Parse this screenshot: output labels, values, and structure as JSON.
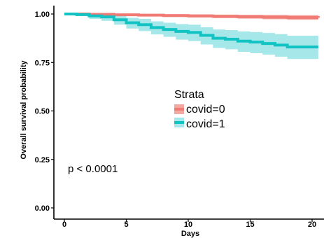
{
  "chart_data": {
    "type": "line",
    "subtype": "kaplan-meier survival curve",
    "xlabel": "Days",
    "ylabel": "Overall survival probability",
    "xlim": [
      0,
      20.5
    ],
    "ylim": [
      0,
      1.0
    ],
    "x_ticks": [
      0,
      5,
      10,
      15,
      20
    ],
    "x_tick_labels": [
      "0",
      "5",
      "10",
      "15",
      "20"
    ],
    "y_ticks": [
      0,
      0.25,
      0.5,
      0.75,
      1.0
    ],
    "y_tick_labels": [
      "0.00",
      "0.25",
      "0.50",
      "0.75",
      "1.00"
    ],
    "grid": false,
    "legend": {
      "title": "Strata",
      "position": "center",
      "entries": [
        "covid=0",
        "covid=1"
      ]
    },
    "annotation": "p < 0.0001",
    "series": [
      {
        "name": "covid=0",
        "color": "#F07B74",
        "band_color": "#F4A8A2",
        "steps": [
          {
            "x": 0,
            "y": 1.0
          },
          {
            "x": 2,
            "y": 0.998
          },
          {
            "x": 4,
            "y": 0.996
          },
          {
            "x": 6,
            "y": 0.994
          },
          {
            "x": 8,
            "y": 0.992
          },
          {
            "x": 10,
            "y": 0.99
          },
          {
            "x": 12,
            "y": 0.988
          },
          {
            "x": 14,
            "y": 0.986
          },
          {
            "x": 16,
            "y": 0.984
          },
          {
            "x": 18,
            "y": 0.982
          },
          {
            "x": 20.5,
            "y": 0.981
          }
        ],
        "lower": [
          0.997,
          0.994,
          0.991,
          0.988,
          0.985,
          0.982,
          0.979,
          0.976,
          0.973,
          0.97,
          0.969
        ],
        "upper": [
          1.0,
          1.0,
          1.0,
          1.0,
          0.999,
          0.998,
          0.997,
          0.996,
          0.995,
          0.994,
          0.993
        ]
      },
      {
        "name": "covid=1",
        "color": "#12C3C3",
        "band_color": "#A6E7EA",
        "steps": [
          {
            "x": 0,
            "y": 1.0
          },
          {
            "x": 1,
            "y": 0.997
          },
          {
            "x": 2,
            "y": 0.99
          },
          {
            "x": 3,
            "y": 0.985
          },
          {
            "x": 4,
            "y": 0.97
          },
          {
            "x": 5,
            "y": 0.955
          },
          {
            "x": 6,
            "y": 0.945
          },
          {
            "x": 7,
            "y": 0.93
          },
          {
            "x": 8,
            "y": 0.92
          },
          {
            "x": 9,
            "y": 0.91
          },
          {
            "x": 10,
            "y": 0.905
          },
          {
            "x": 11,
            "y": 0.89
          },
          {
            "x": 12,
            "y": 0.875
          },
          {
            "x": 13,
            "y": 0.87
          },
          {
            "x": 14,
            "y": 0.86
          },
          {
            "x": 15,
            "y": 0.855
          },
          {
            "x": 16,
            "y": 0.848
          },
          {
            "x": 17,
            "y": 0.84
          },
          {
            "x": 18,
            "y": 0.83
          },
          {
            "x": 20.5,
            "y": 0.83
          }
        ],
        "lower": [
          1.0,
          0.99,
          0.975,
          0.965,
          0.945,
          0.925,
          0.912,
          0.895,
          0.882,
          0.868,
          0.86,
          0.843,
          0.825,
          0.818,
          0.805,
          0.798,
          0.79,
          0.78,
          0.768,
          0.765
        ],
        "upper": [
          1.0,
          1.0,
          1.0,
          1.0,
          0.99,
          0.98,
          0.975,
          0.962,
          0.955,
          0.948,
          0.945,
          0.932,
          0.92,
          0.917,
          0.91,
          0.907,
          0.902,
          0.896,
          0.888,
          0.888
        ]
      }
    ]
  }
}
